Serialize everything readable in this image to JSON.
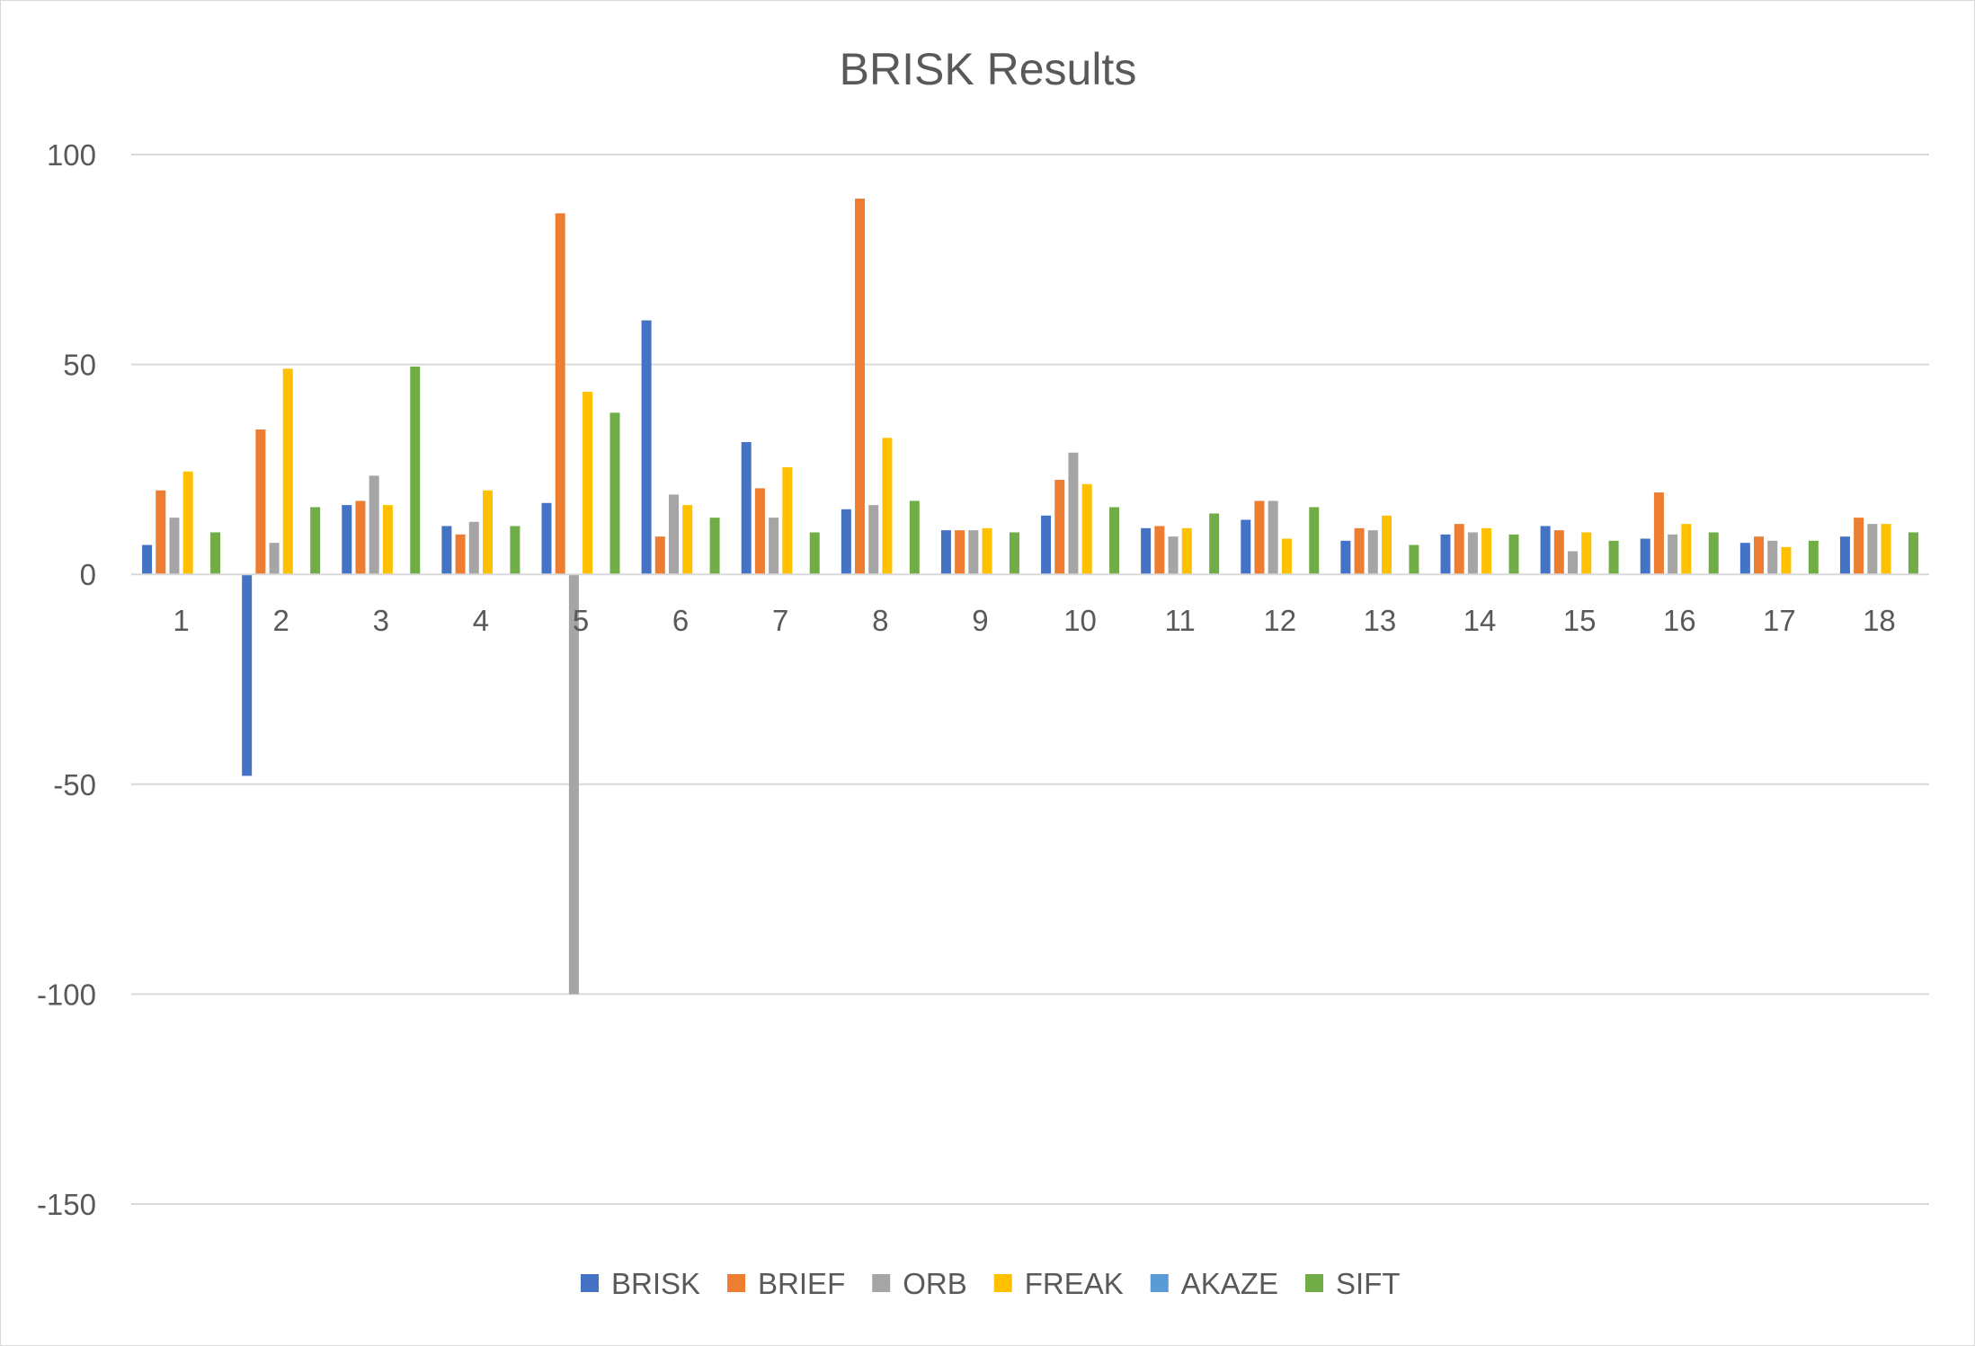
{
  "chart_data": {
    "type": "bar",
    "title": "BRISK Results",
    "xlabel": "",
    "ylabel": "",
    "ylim": [
      -150,
      100
    ],
    "yticks": [
      100,
      50,
      0,
      -50,
      -100,
      -150
    ],
    "grid": true,
    "legend_position": "bottom",
    "categories": [
      "1",
      "2",
      "3",
      "4",
      "5",
      "6",
      "7",
      "8",
      "9",
      "10",
      "11",
      "12",
      "13",
      "14",
      "15",
      "16",
      "17",
      "18"
    ],
    "series": [
      {
        "name": "BRISK",
        "color": "#4472c4",
        "values": [
          7,
          -48,
          16.5,
          11.5,
          17,
          60.5,
          31.5,
          15.5,
          10.5,
          14,
          11,
          13,
          8,
          9.5,
          11.5,
          8.5,
          7.5,
          9
        ]
      },
      {
        "name": "BRIEF",
        "color": "#ed7d31",
        "values": [
          20,
          34.5,
          17.5,
          9.5,
          86,
          9,
          20.5,
          89.5,
          10.5,
          22.5,
          11.5,
          17.5,
          11,
          12,
          10.5,
          19.5,
          9,
          13.5
        ]
      },
      {
        "name": "ORB",
        "color": "#a5a5a5",
        "values": [
          13.5,
          7.5,
          23.5,
          12.5,
          -100,
          19,
          13.5,
          16.5,
          10.5,
          29,
          9,
          17.5,
          10.5,
          10,
          5.5,
          9.5,
          8,
          12
        ]
      },
      {
        "name": "FREAK",
        "color": "#ffc000",
        "values": [
          24.5,
          49,
          16.5,
          20,
          43.5,
          16.5,
          25.5,
          32.5,
          11,
          21.5,
          11,
          8.5,
          14,
          11,
          10,
          12,
          6.5,
          12
        ]
      },
      {
        "name": "AKAZE",
        "color": "#5b9bd5",
        "values": [
          0,
          0,
          0,
          0,
          0,
          0,
          0,
          0,
          0,
          0,
          0,
          0,
          0,
          0,
          0,
          0,
          0,
          0
        ]
      },
      {
        "name": "SIFT",
        "color": "#70ad47",
        "values": [
          10,
          16,
          49.5,
          11.5,
          38.5,
          13.5,
          10,
          17.5,
          10,
          16,
          14.5,
          16,
          7,
          9.5,
          8,
          10,
          8,
          10
        ]
      }
    ]
  }
}
